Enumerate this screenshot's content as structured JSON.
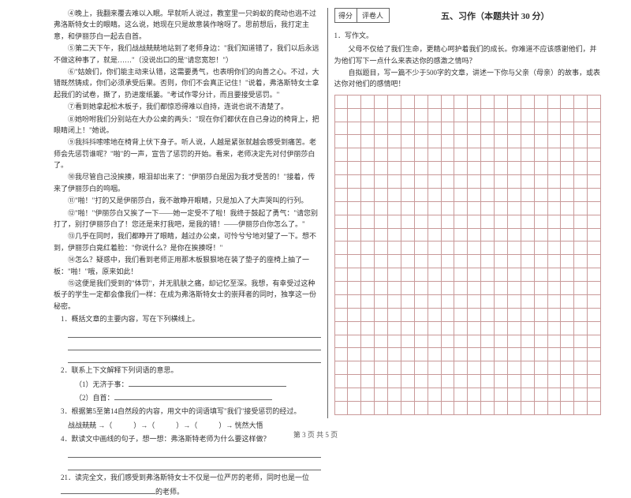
{
  "left": {
    "paras": [
      "④晚上，我翻来覆去难以入眠。早就听人说过，教室里一只蚂蚁的爬动也逃不过弗洛斯特女士的眼睛。这么说，她现在只是故意装作啥呀了。思前想后，我打定主意，和伊丽莎白一起去自首。",
      "⑤第二天下午，我们战战兢兢地站到了老师身边：\"我们知道错了，我们以后永远不做这种事了，就是……\"（没说出口的是\"请您宽恕！\"）",
      "⑥\"姑娘们，你们能主动来认错，这需要勇气，也表明你们的向善之心。不过，大错既然铸成，你们必须承受后果。否则，你们不会真正记住！\"说着，弗洛斯特女士拿起我们的试卷，撕了，扔进废纸篓。\"考试作零分计，而且要接受惩罚。\"",
      "⑦看到她拿起松木板子，我们都惊恐得难以自持，连说也说不清楚了。",
      "⑧她吩咐我们分别站在大办公桌的两头：\"现在你们都伏在自己身边的椅背上，把眼睛闭上！\"她说。",
      "⑨我抖抖嗦嗦地在椅背上伏下身子。听人说，人越是紧张就越会感受到痛苦。老师会先惩罚谁呢？\"啪\"的一声，宣告了惩罚的开始。看来，老师决定先对付伊丽莎白了。",
      "⑩我尽管自己没挨揍，眼泪却出来了：\"伊丽莎白是因为我才受苦的！\"接着，传来了伊丽莎白的呜咽。",
      "⑪\"啪！\"打的又是伊丽莎白，我不敢睁开眼睛，只是加入了大声哭叫的行列。",
      "⑫\"啪！\"伊丽莎白又挨了一下——她一定受不了啦！我终于鼓起了勇气：\"请您别打了，别打伊丽莎白了！您还是来打我吧，是我的错！——伊丽莎白你怎么了。\"",
      "⑬几乎在同时，我们都睁开了眼睛，越过办公桌，可怜兮兮地对望了一下。想不到，伊丽莎白竟红着脸：\"你说什么？是你在挨揍呀！\"",
      "⑭怎么？疑惑中，我们看到老师正用那木板狠狠地在装了垫子的座椅上抽了一板：\"啪！\"哦，原来如此！",
      "⑮这便是我们受到的\"体罚\"，并无肌肤之痛，却记忆至深。我想，有幸受过这种板子的学生一定都会像我们一样：在成为弗洛斯特女士的崇拜者的同时，独享这一份秘密。"
    ],
    "q1": "1．概括文章的主要内容，写在下列横线上。",
    "q2": "2．联系上下文解释下列词语的意思。",
    "q2a": "（1）无济于事：",
    "q2b": "（2）自首：",
    "q3": "3．根据第5至第14自然段的内容，用文中的词语填写\"我们\"接受惩罚的经过。",
    "q3line": "战战兢兢 →（　　　）→（　　　）→（　　　）→ 恍然大悟",
    "q4": "4．默读文中画线的句子，想一想：弗洛斯特老师为什么要这样做？",
    "q5_pre": "21．读完全文，我们感受到弗洛斯特女士不仅是一位严厉的老师，同时也是一位",
    "q5_post": "的老师。"
  },
  "right": {
    "score_labels": [
      "得分",
      "评卷人"
    ],
    "section_title": "五、习作（本题共计 30 分）",
    "prompt_num": "1．写作文。",
    "prompt_p1": "父母不仅给了我们生命，更精心呵护着我们的成长。你难道不应该感谢他们，并为他们写下一点什么来表达你的感激之情吗？",
    "prompt_p2": "自拟题目，写一篇不少于500字的文章，讲述一下你与父亲（母亲）的故事，或表达你对他们的感情吧！",
    "grid": {
      "rows": 24,
      "cols": 20,
      "border_color": "#c99999"
    }
  },
  "footer": "第 3 页  共 5 页"
}
